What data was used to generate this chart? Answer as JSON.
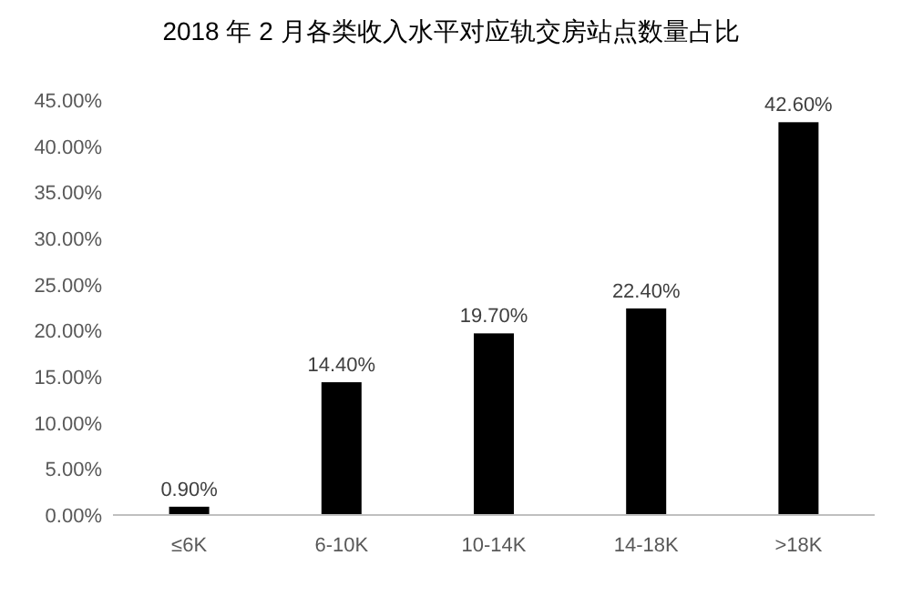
{
  "chart_data": {
    "type": "bar",
    "title": "2018 年 2 月各类收入水平对应轨交房站点数量占比",
    "categories": [
      "≤6K",
      "6-10K",
      "10-14K",
      "14-18K",
      ">18K"
    ],
    "values": [
      0.9,
      14.4,
      19.7,
      22.4,
      42.6
    ],
    "value_labels": [
      "0.90%",
      "14.40%",
      "19.70%",
      "22.40%",
      "42.60%"
    ],
    "color": "#000000",
    "ylim": [
      0,
      45
    ],
    "yticks": [
      {
        "value": 0,
        "label": "0.00%"
      },
      {
        "value": 5,
        "label": "5.00%"
      },
      {
        "value": 10,
        "label": "10.00%"
      },
      {
        "value": 15,
        "label": "15.00%"
      },
      {
        "value": 20,
        "label": "20.00%"
      },
      {
        "value": 25,
        "label": "25.00%"
      },
      {
        "value": 30,
        "label": "30.00%"
      },
      {
        "value": 35,
        "label": "35.00%"
      },
      {
        "value": 40,
        "label": "40.00%"
      },
      {
        "value": 45,
        "label": "45.00%"
      }
    ],
    "grid": false
  }
}
